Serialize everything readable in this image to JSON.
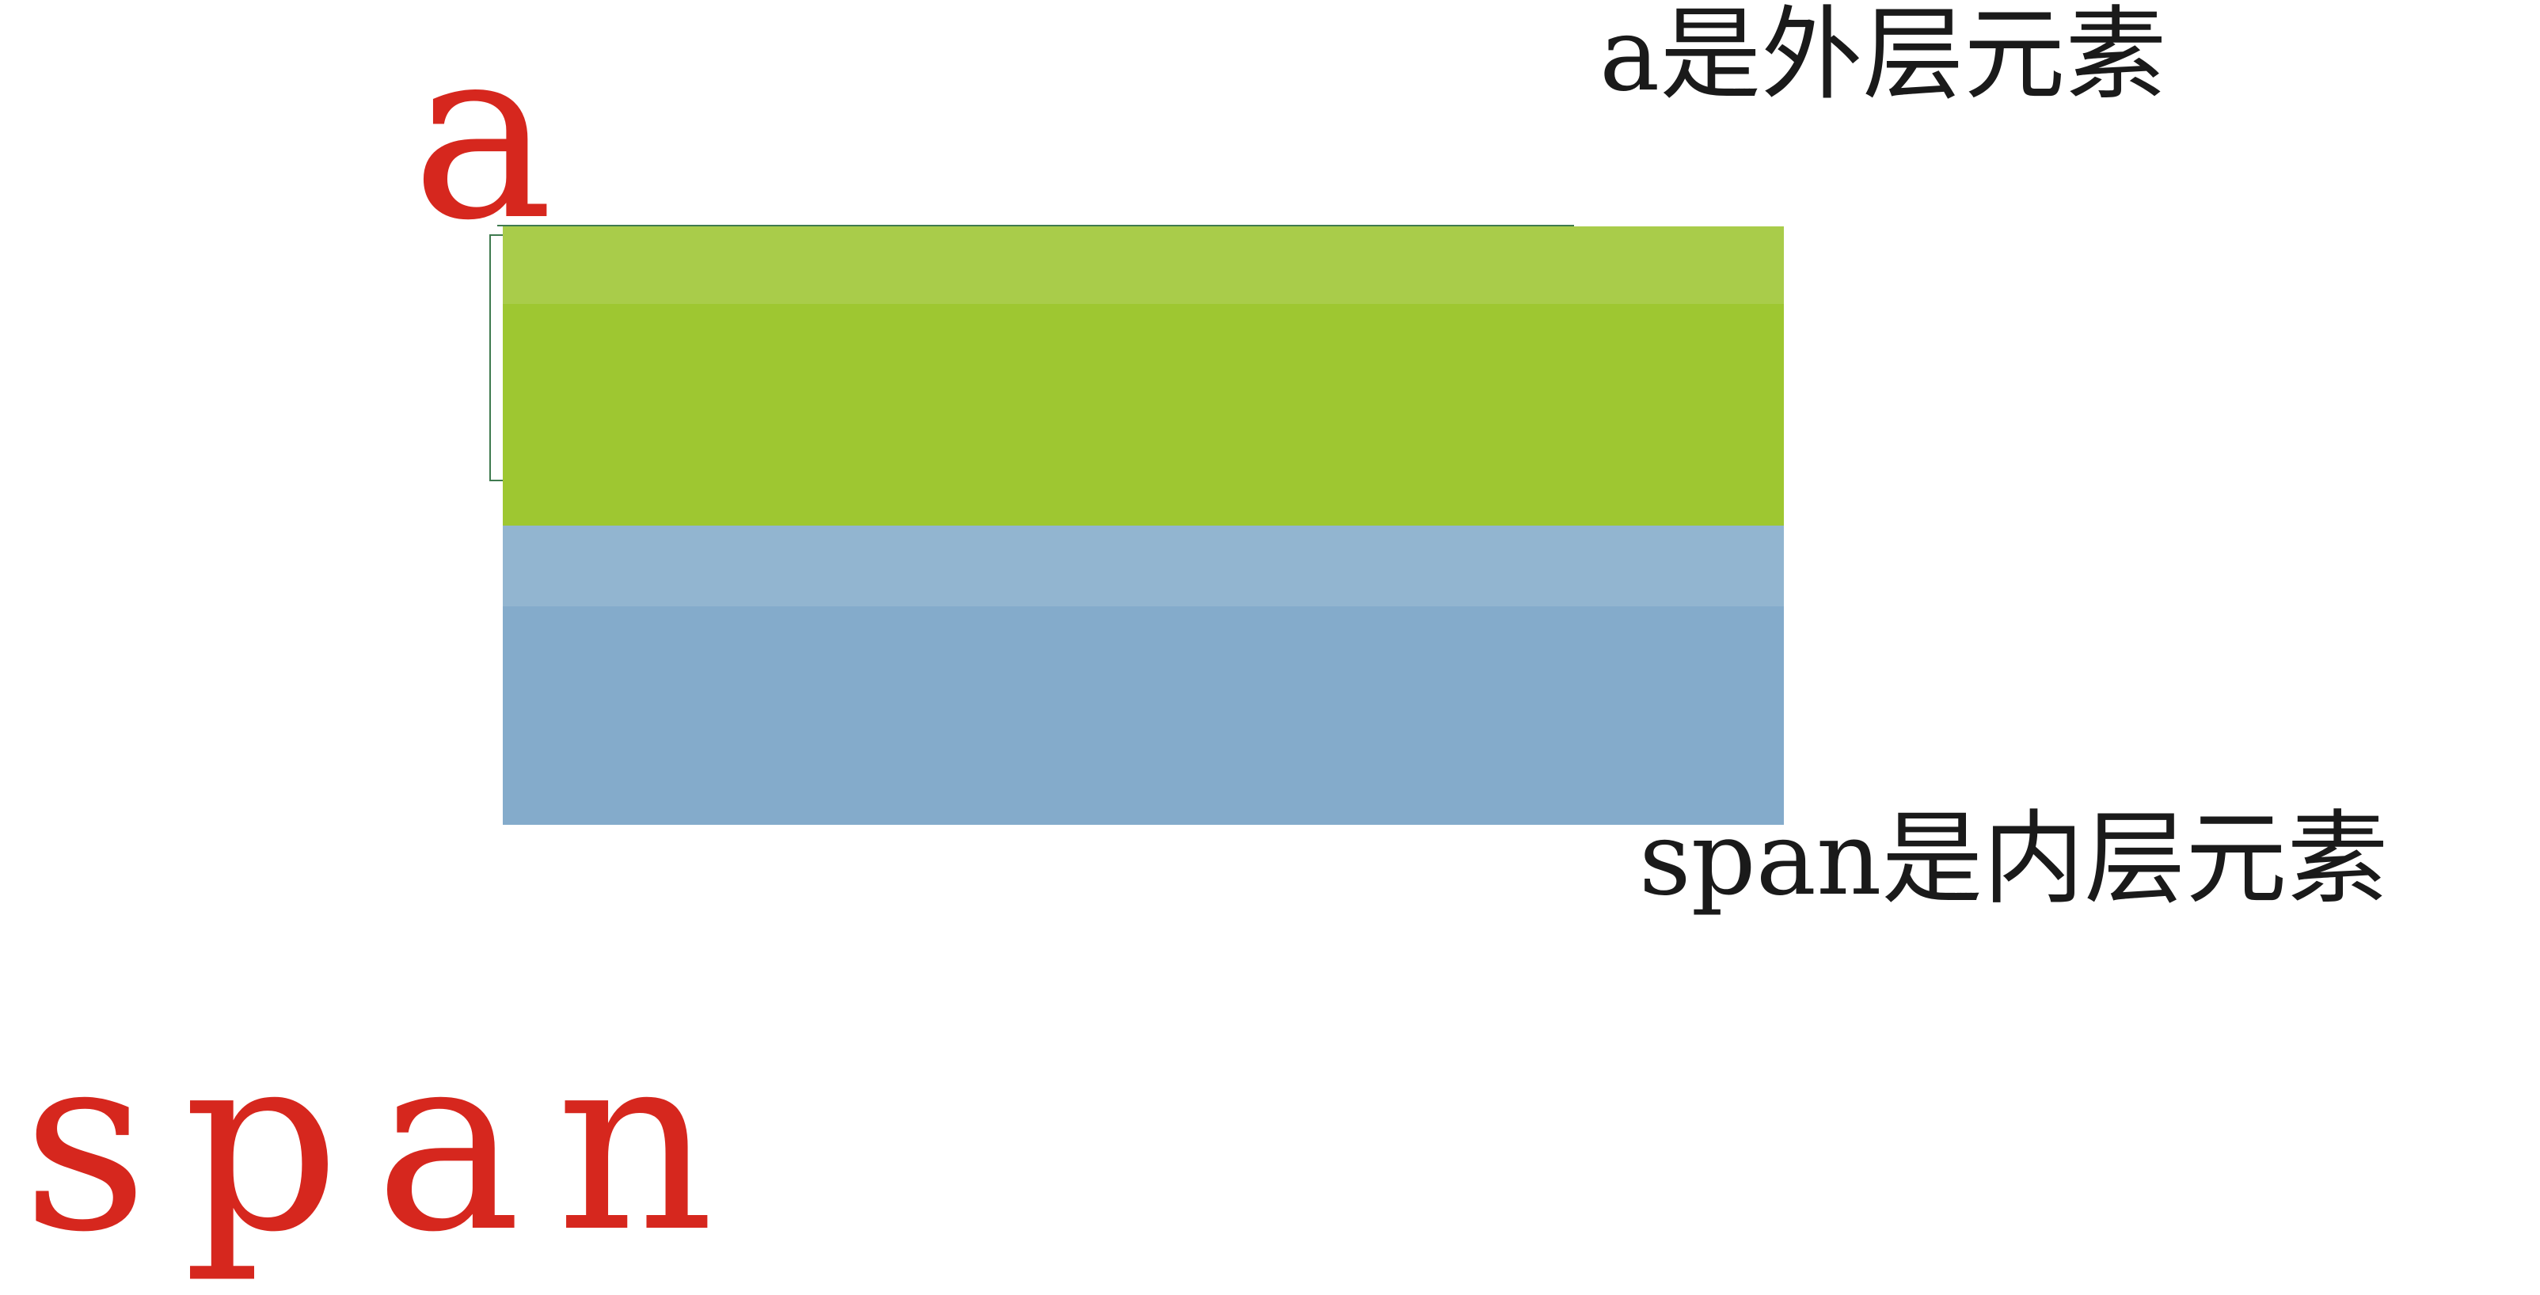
{
  "labels": {
    "outer_element_letter": "a",
    "inner_element_word": "span",
    "outer_description": "a是外层元素",
    "inner_description": "span是内层元素"
  },
  "colors": {
    "label_red": "#D6271E",
    "outer_block_green": "#9EC731",
    "inner_block_blue": "#84ABCB",
    "text_black": "#1a1a1a"
  }
}
